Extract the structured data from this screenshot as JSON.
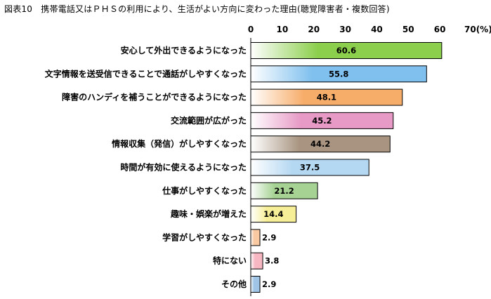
{
  "chart_data": {
    "type": "bar",
    "orientation": "horizontal",
    "title": "図表10　携帯電話又はＰＨＳの利用により、生活がよい方向に変わった理由(聴覚障害者・複数回答)",
    "unit_label": "70(%)",
    "xlim": [
      0,
      70
    ],
    "ticks": [
      "0",
      "10",
      "20",
      "30",
      "40",
      "50",
      "60"
    ],
    "grid": false,
    "categories": [
      "安心して外出できるようになった",
      "文字情報を送受信できることで通話がしやすくなった",
      "障害のハンディを補うことができるようになった",
      "交流範囲が広がった",
      "情報収集（発信）がしやすくなった",
      "時間が有効に使えるようになった",
      "仕事がしやすくなった",
      "趣味・娯楽が増えた",
      "学習がしやすくなった",
      "特にない",
      "その他"
    ],
    "values": [
      60.6,
      55.8,
      48.1,
      45.2,
      44.2,
      37.5,
      21.2,
      14.4,
      2.9,
      3.8,
      2.9
    ],
    "value_labels": [
      "60.6",
      "55.8",
      "48.1",
      "45.2",
      "44.2",
      "37.5",
      "21.2",
      "14.4",
      "2.9",
      "3.8",
      "2.9"
    ],
    "colors": [
      [
        "#ffffff",
        "#8ccf4d"
      ],
      [
        "#ffffff",
        "#7fc0ee"
      ],
      [
        "#ffffff",
        "#f7ad6a"
      ],
      [
        "#ffffff",
        "#e79ac6"
      ],
      [
        "#ffffff",
        "#a89480"
      ],
      [
        "#ffffff",
        "#b5d8f2"
      ],
      [
        "#ffffff",
        "#a6d394"
      ],
      [
        "#ffffff",
        "#f7ef98"
      ],
      [
        "#ffffff",
        "#f9c9a2"
      ],
      [
        "#ffffff",
        "#f6b7c2"
      ],
      [
        "#ffffff",
        "#9fc4e6"
      ]
    ]
  }
}
